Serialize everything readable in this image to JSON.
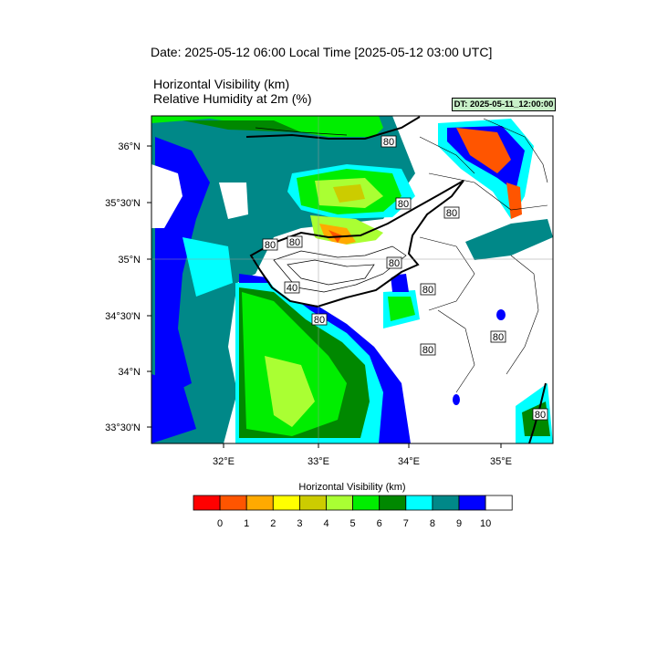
{
  "header": {
    "date_line": "Date: 2025-05-12  06:00 Local Time [2025-05-12  03:00 UTC]",
    "variable_1": "Horizontal Visibility   (km)",
    "variable_2": "Relative Humidity at 2m   (%)",
    "dt_badge": "DT: 2025-05-11_12:00:00"
  },
  "map": {
    "lon_ticks": [
      "32°E",
      "33°E",
      "34°E",
      "35°E"
    ],
    "lat_ticks": [
      "36°N",
      "35°30'N",
      "35°N",
      "34°30'N",
      "34°N",
      "33°30'N"
    ],
    "contour_labels": [
      "80",
      "80",
      "80",
      "80",
      "80",
      "80",
      "80",
      "80",
      "80",
      "80",
      "40",
      "80"
    ]
  },
  "colorbar": {
    "title": "Horizontal Visibility  (km)",
    "colors": [
      "#ff0000",
      "#ff5500",
      "#ffaa00",
      "#ffff00",
      "#cccc00",
      "#aaff33",
      "#00ee00",
      "#008800",
      "#00ffff",
      "#008888",
      "#0000ff",
      "#ffffff"
    ],
    "labels": [
      "0",
      "1",
      "2",
      "3",
      "4",
      "5",
      "6",
      "7",
      "8",
      "9",
      "10"
    ]
  }
}
